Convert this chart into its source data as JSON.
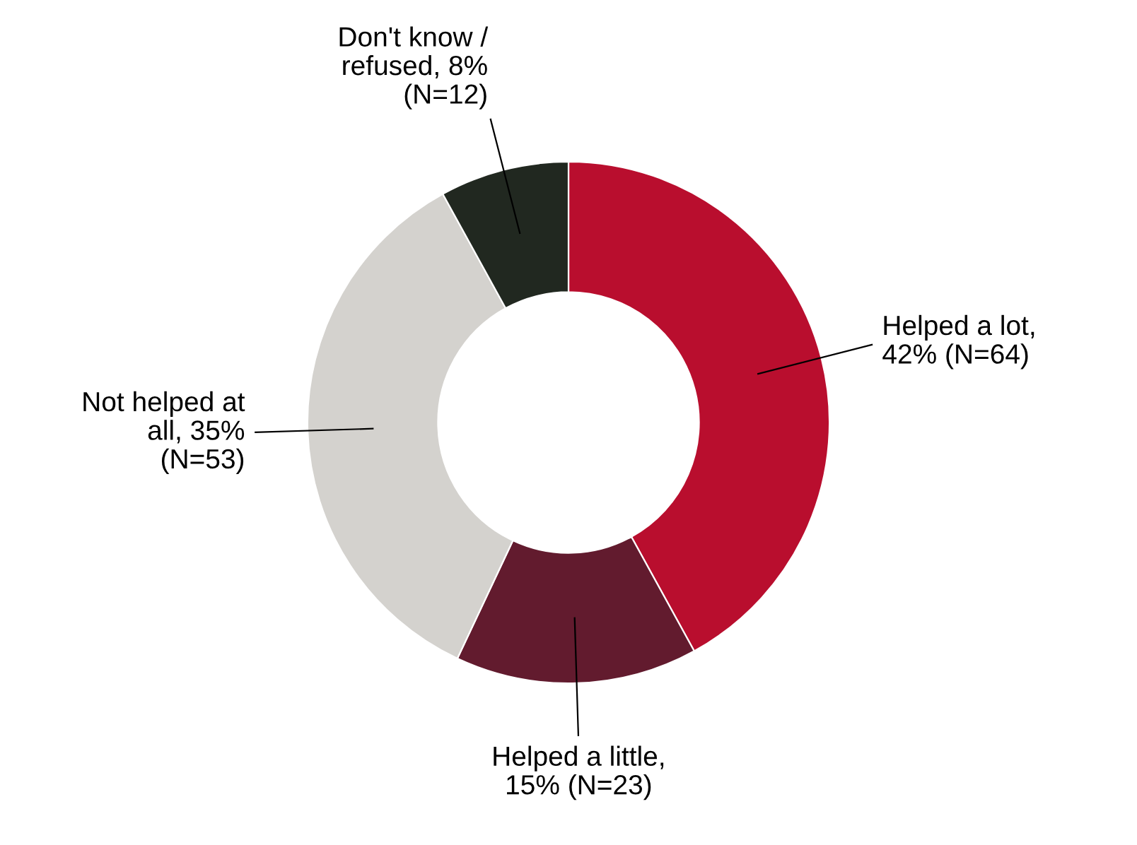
{
  "chart_data": {
    "type": "donut",
    "categories": [
      "Helped a lot,\n42% (N=64)",
      "Helped a little,\n15% (N=23)",
      "Not helped at\nall, 35%\n(N=53)",
      "Don't know /\nrefused, 8%\n(N=12)"
    ],
    "values": [
      42,
      15,
      35,
      8
    ],
    "colors": [
      "#b90e2e",
      "#621b2e",
      "#d4d2ce",
      "#212820"
    ],
    "legend": false
  }
}
